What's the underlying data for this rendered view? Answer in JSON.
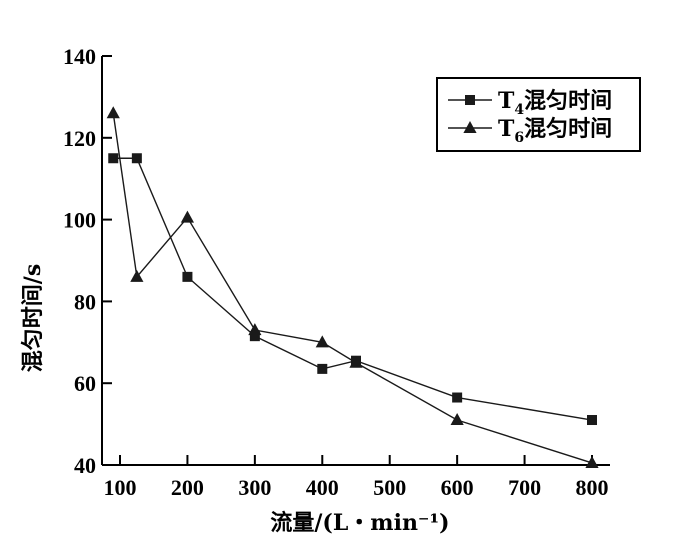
{
  "chart_data": {
    "type": "line",
    "xlabel": "流量/(L・min⁻¹)",
    "ylabel": "混匀时间/s",
    "xlim": [
      80,
      800
    ],
    "ylim": [
      40,
      140
    ],
    "xticks": [
      100,
      200,
      300,
      400,
      500,
      600,
      700,
      800
    ],
    "yticks": [
      40,
      60,
      80,
      100,
      120,
      140
    ],
    "legend_position": "top-right",
    "grid": false,
    "series": [
      {
        "name_prefix": "T",
        "name_sub": "4",
        "name_suffix": "混匀时间",
        "marker": "square",
        "color": "#1a1a1a",
        "x": [
          90,
          125,
          200,
          300,
          400,
          450,
          600,
          800
        ],
        "y": [
          115,
          115,
          86,
          71.5,
          63.5,
          65.5,
          56.5,
          51
        ]
      },
      {
        "name_prefix": "T",
        "name_sub": "6",
        "name_suffix": "混匀时间",
        "marker": "triangle",
        "color": "#1a1a1a",
        "x": [
          90,
          125,
          200,
          300,
          400,
          450,
          600,
          800
        ],
        "y": [
          126,
          86,
          100.5,
          73,
          70,
          65,
          51,
          40.5
        ]
      }
    ]
  }
}
